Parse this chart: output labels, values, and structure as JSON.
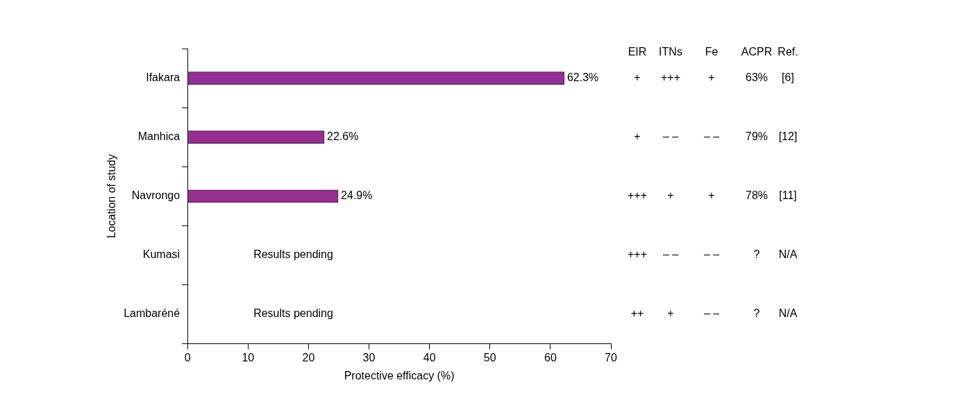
{
  "chart_data": {
    "type": "bar",
    "orientation": "horizontal",
    "xlabel": "Protective efficacy (%)",
    "ylabel": "Location of study",
    "categories": [
      "Ifakara",
      "Manhica",
      "Navrongo",
      "Kumasi",
      "Lambaréné"
    ],
    "values": [
      62.3,
      22.6,
      24.9,
      null,
      null
    ],
    "value_labels": [
      "62.3%",
      "22.6%",
      "24.9%",
      "Results pending",
      "Results pending"
    ],
    "color": "#953092",
    "xlim": [
      0,
      70
    ],
    "xticks": [
      0,
      10,
      20,
      30,
      40,
      50,
      60,
      70
    ],
    "grid": false,
    "legend": false,
    "annotations": [
      "EIR",
      "ITNs",
      "Fe",
      "ACPR",
      "Ref.",
      "+",
      "+++",
      "+",
      "63%",
      "[6]",
      "+",
      "– –",
      "– –",
      "79%",
      "[12]",
      "+++",
      "+",
      "+",
      "78%",
      "[11]",
      "+++",
      "– –",
      "– –",
      "?",
      "N/A",
      "++",
      "+",
      "– –",
      "?",
      "N/A"
    ]
  }
}
